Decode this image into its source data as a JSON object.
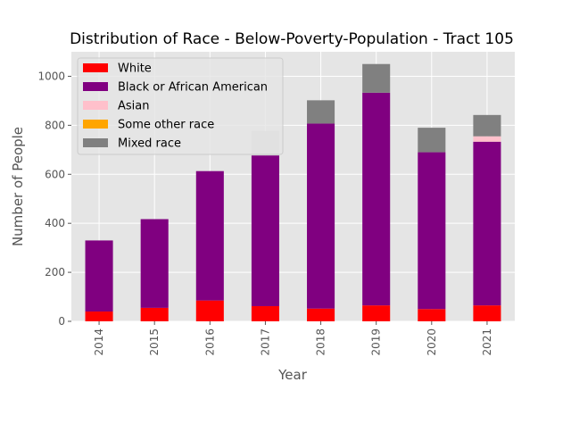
{
  "chart_data": {
    "type": "bar",
    "stacked": true,
    "title": "Distribution of Race - Below-Poverty-Population - Tract 105",
    "xlabel": "Year",
    "ylabel": "Number of People",
    "ylim": [
      0,
      1100
    ],
    "yticks": [
      0,
      200,
      400,
      600,
      800,
      1000
    ],
    "grid": true,
    "legend_position": "top-left",
    "categories": [
      "2014",
      "2015",
      "2016",
      "2017",
      "2018",
      "2019",
      "2020",
      "2021"
    ],
    "series": [
      {
        "name": "White",
        "color": "#ff0000",
        "values": [
          40,
          55,
          85,
          62,
          52,
          65,
          50,
          65
        ]
      },
      {
        "name": "Black or African American",
        "color": "#800080",
        "values": [
          290,
          362,
          528,
          615,
          755,
          868,
          640,
          668
        ]
      },
      {
        "name": "Asian",
        "color": "#ffc0cb",
        "values": [
          0,
          0,
          0,
          0,
          0,
          0,
          0,
          22
        ]
      },
      {
        "name": "Some other race",
        "color": "#ffa500",
        "values": [
          0,
          0,
          0,
          0,
          0,
          0,
          0,
          0
        ]
      },
      {
        "name": "Mixed race",
        "color": "#808080",
        "values": [
          0,
          0,
          0,
          0,
          95,
          117,
          100,
          87
        ]
      }
    ],
    "extra_segments": [
      {
        "category": "2017",
        "value": 100,
        "color": "#d3d3d3"
      }
    ]
  }
}
